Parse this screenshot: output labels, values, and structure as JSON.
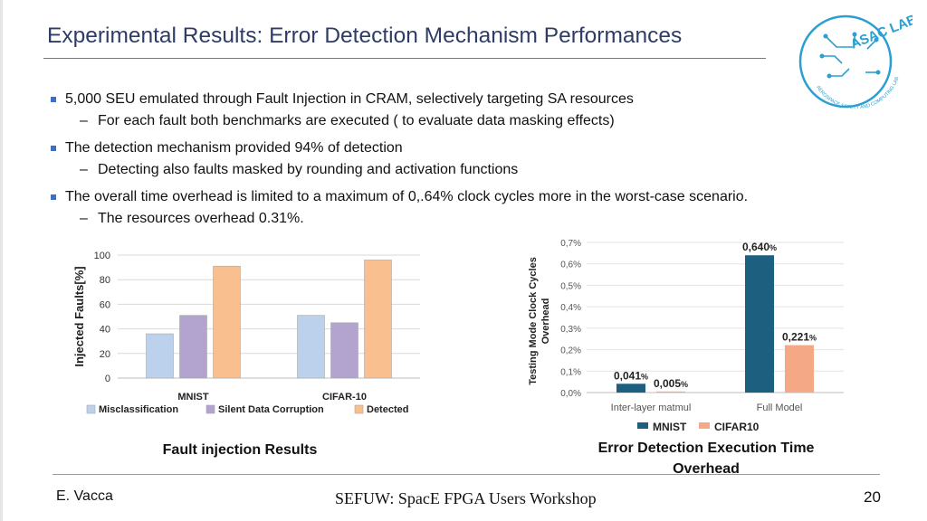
{
  "title": "Experimental Results: Error Detection Mechanism Performances",
  "logo": {
    "main_text": "ASAC LAB",
    "ring_text": "AEROSPACE SAFETY AND COMPUTING LAB"
  },
  "bullets": [
    {
      "text": "5,000 SEU emulated through  Fault Injection in CRAM, selectively targeting SA resources",
      "sub": "For each fault both benchmarks are executed ( to evaluate data masking effects)"
    },
    {
      "text": "The detection mechanism provided 94% of detection",
      "sub": "Detecting also faults masked by rounding and activation functions"
    },
    {
      "text": "The overall time overhead is limited to a maximum of 0,.64% clock cycles more in the worst-case scenario.",
      "sub": "The resources overhead 0.31%."
    }
  ],
  "chart_data": [
    {
      "type": "bar",
      "ylabel": "Injected Faults[%]",
      "categories": [
        "MNIST",
        "CIFAR-10"
      ],
      "yticks": [
        "0",
        "20",
        "40",
        "60",
        "80",
        "100"
      ],
      "ylim": [
        0,
        100
      ],
      "grid": true,
      "legend_position": "bottom",
      "series": [
        {
          "name": "Misclassification",
          "values": [
            36,
            51
          ],
          "color": "#bcd1ec"
        },
        {
          "name": "Silent Data Corruption",
          "values": [
            51,
            45
          ],
          "color": "#b3a3cf"
        },
        {
          "name": "Detected",
          "values": [
            91,
            96
          ],
          "color": "#f9bf8e"
        }
      ],
      "caption": "Fault injection Results"
    },
    {
      "type": "bar",
      "ylabel_lines": [
        "Testing Mode Clock Cycles",
        "Overhead"
      ],
      "categories": [
        "Inter-layer matmul",
        "Full Model"
      ],
      "yticks": [
        "0,0%",
        "0,1%",
        "0,2%",
        "0,3%",
        "0,4%",
        "0,5%",
        "0,6%",
        "0,7%"
      ],
      "ylim": [
        0,
        0.7
      ],
      "grid": true,
      "legend_position": "bottom",
      "series": [
        {
          "name": "MNIST",
          "values": [
            0.041,
            0.64
          ],
          "labels": [
            "0,041",
            "0,640"
          ],
          "color": "#1d5f7e"
        },
        {
          "name": "CIFAR10",
          "values": [
            0.005,
            0.221
          ],
          "labels": [
            "0,005",
            "0,221"
          ],
          "color": "#f4a886"
        }
      ],
      "label_suffix": "%",
      "caption_lines": [
        "Error Detection Execution Time",
        "Overhead"
      ]
    }
  ],
  "footer": {
    "author": "E. Vacca",
    "center": "SEFUW: SpacE FPGA Users Workshop",
    "page": "20"
  }
}
